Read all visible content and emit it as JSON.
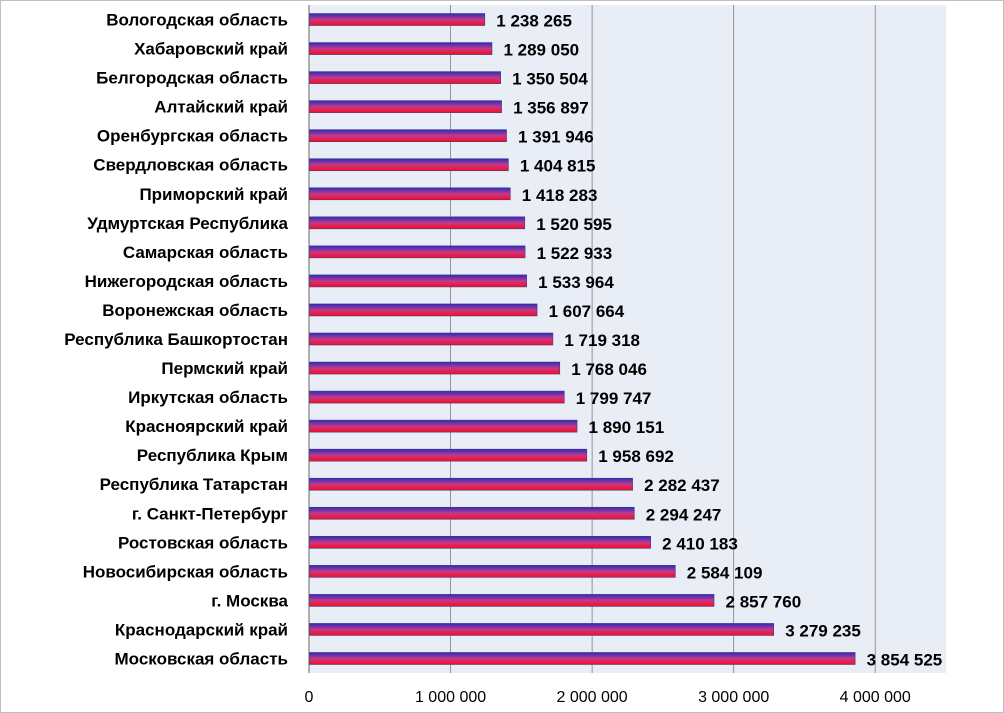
{
  "chart_data": {
    "type": "bar",
    "orientation": "horizontal",
    "categories": [
      "Вологодская область",
      "Хабаровский край",
      "Белгородская область",
      "Алтайский край",
      "Оренбургская область",
      "Свердловская область",
      "Приморский край",
      "Удмуртская Республика",
      "Самарская область",
      "Нижегородская область",
      "Воронежская область",
      "Республика Башкортостан",
      "Пермский край",
      "Иркутская область",
      "Красноярский край",
      "Республика Крым",
      "Республика Татарстан",
      "г. Санкт-Петербург",
      "Ростовская область",
      "Новосибирская область",
      "г. Москва",
      "Краснодарский край",
      "Московская область"
    ],
    "values": [
      1238265,
      1289050,
      1350504,
      1356897,
      1391946,
      1404815,
      1418283,
      1520595,
      1522933,
      1533964,
      1607664,
      1719318,
      1768046,
      1799747,
      1890151,
      1958692,
      2282437,
      2294247,
      2410183,
      2584109,
      2857760,
      3279235,
      3854525
    ],
    "value_labels": [
      "1 238 265",
      "1 289 050",
      "1 350 504",
      "1 356 897",
      "1 391 946",
      "1 404 815",
      "1 418 283",
      "1 520 595",
      "1 522 933",
      "1 533 964",
      "1 607 664",
      "1 719 318",
      "1 768 046",
      "1 799 747",
      "1 890 151",
      "1 958 692",
      "2 282 437",
      "2 294 247",
      "2 410 183",
      "2 584 109",
      "2 857 760",
      "3 279 235",
      "3 854 525"
    ],
    "xlim": [
      0,
      4500000
    ],
    "x_ticks": [
      0,
      1000000,
      2000000,
      3000000,
      4000000
    ],
    "x_tick_labels": [
      "0",
      "1 000 000",
      "2 000 000",
      "3 000 000",
      "4 000 000"
    ],
    "title": "",
    "xlabel": "",
    "ylabel": "",
    "grid": true,
    "legend": "none",
    "colors": {
      "plot_background": "#e9edf6",
      "gridline": "#7f7f7f",
      "bar_top": "#2b2bbd",
      "bar_middle": "#c23a8a",
      "bar_bottom": "#ff0a1e"
    }
  }
}
